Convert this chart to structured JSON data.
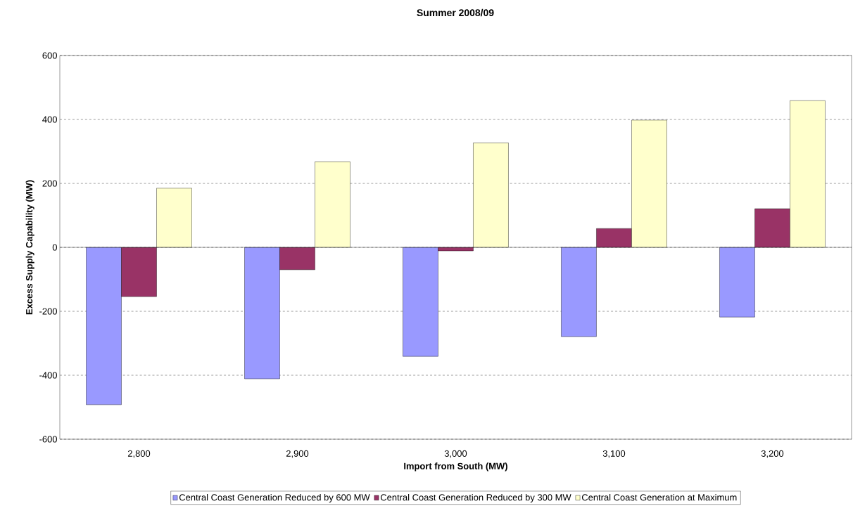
{
  "chart_data": {
    "type": "bar",
    "title": "Summer 2008/09",
    "xlabel": "Import from South (MW)",
    "ylabel": "Excess Supply Capability (MW)",
    "categories": [
      "2,800",
      "2,900",
      "3,000",
      "3,100",
      "3,200"
    ],
    "series": [
      {
        "name": "Central Coast Generation Reduced by 600 MW",
        "color": "#9999ff",
        "values": [
          -492,
          -411,
          -341,
          -279,
          -218
        ]
      },
      {
        "name": "Central Coast Generation Reduced by 300 MW",
        "color": "#993366",
        "values": [
          -154,
          -70,
          -11,
          59,
          121
        ]
      },
      {
        "name": "Central Coast Generation at Maximum",
        "color": "#ffffcc",
        "values": [
          185,
          268,
          327,
          398,
          459
        ]
      }
    ],
    "ylim": [
      -600,
      600
    ],
    "yticks": [
      -600,
      -400,
      -200,
      0,
      200,
      400,
      600
    ],
    "grid": "y",
    "legend": "bottom"
  }
}
